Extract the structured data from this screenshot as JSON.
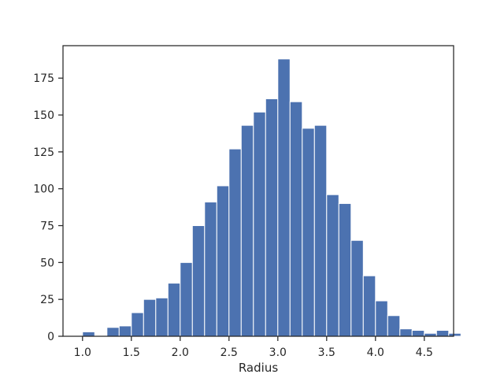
{
  "chart_data": {
    "type": "bar",
    "subtype": "histogram",
    "title": "",
    "xlabel": "Radius",
    "ylabel": "",
    "xlim": [
      0.8,
      4.8
    ],
    "ylim": [
      0,
      197
    ],
    "xticks": [
      1.0,
      1.5,
      2.0,
      2.5,
      3.0,
      3.5,
      4.0,
      4.5
    ],
    "xtick_labels": [
      "1.0",
      "1.5",
      "2.0",
      "2.5",
      "3.0",
      "3.5",
      "4.0",
      "4.5"
    ],
    "yticks": [
      0,
      25,
      50,
      75,
      100,
      125,
      150,
      175
    ],
    "ytick_labels": [
      "0",
      "25",
      "50",
      "75",
      "100",
      "125",
      "150",
      "175"
    ],
    "grid": false,
    "bar_color": "#4c72b0",
    "bins": [
      {
        "x0": 1.0,
        "x1": 1.125,
        "count": 3
      },
      {
        "x0": 1.125,
        "x1": 1.25,
        "count": 0
      },
      {
        "x0": 1.25,
        "x1": 1.375,
        "count": 6
      },
      {
        "x0": 1.375,
        "x1": 1.5,
        "count": 7
      },
      {
        "x0": 1.5,
        "x1": 1.625,
        "count": 16
      },
      {
        "x0": 1.625,
        "x1": 1.75,
        "count": 25
      },
      {
        "x0": 1.75,
        "x1": 1.875,
        "count": 26
      },
      {
        "x0": 1.875,
        "x1": 2.0,
        "count": 36
      },
      {
        "x0": 2.0,
        "x1": 2.125,
        "count": 50
      },
      {
        "x0": 2.125,
        "x1": 2.25,
        "count": 75
      },
      {
        "x0": 2.25,
        "x1": 2.375,
        "count": 91
      },
      {
        "x0": 2.375,
        "x1": 2.5,
        "count": 102
      },
      {
        "x0": 2.5,
        "x1": 2.625,
        "count": 127
      },
      {
        "x0": 2.625,
        "x1": 2.75,
        "count": 143
      },
      {
        "x0": 2.75,
        "x1": 2.875,
        "count": 152
      },
      {
        "x0": 2.875,
        "x1": 3.0,
        "count": 161
      },
      {
        "x0": 3.0,
        "x1": 3.125,
        "count": 188
      },
      {
        "x0": 3.125,
        "x1": 3.25,
        "count": 159
      },
      {
        "x0": 3.25,
        "x1": 3.375,
        "count": 141
      },
      {
        "x0": 3.375,
        "x1": 3.5,
        "count": 143
      },
      {
        "x0": 3.5,
        "x1": 3.625,
        "count": 96
      },
      {
        "x0": 3.625,
        "x1": 3.75,
        "count": 90
      },
      {
        "x0": 3.75,
        "x1": 3.875,
        "count": 65
      },
      {
        "x0": 3.875,
        "x1": 4.0,
        "count": 41
      },
      {
        "x0": 4.0,
        "x1": 4.125,
        "count": 24
      },
      {
        "x0": 4.125,
        "x1": 4.25,
        "count": 14
      },
      {
        "x0": 4.25,
        "x1": 4.375,
        "count": 5
      },
      {
        "x0": 4.375,
        "x1": 4.5,
        "count": 4
      },
      {
        "x0": 4.5,
        "x1": 4.625,
        "count": 2
      },
      {
        "x0": 4.625,
        "x1": 4.75,
        "count": 4
      },
      {
        "x0": 4.75,
        "x1": 4.875,
        "count": 2
      }
    ]
  }
}
